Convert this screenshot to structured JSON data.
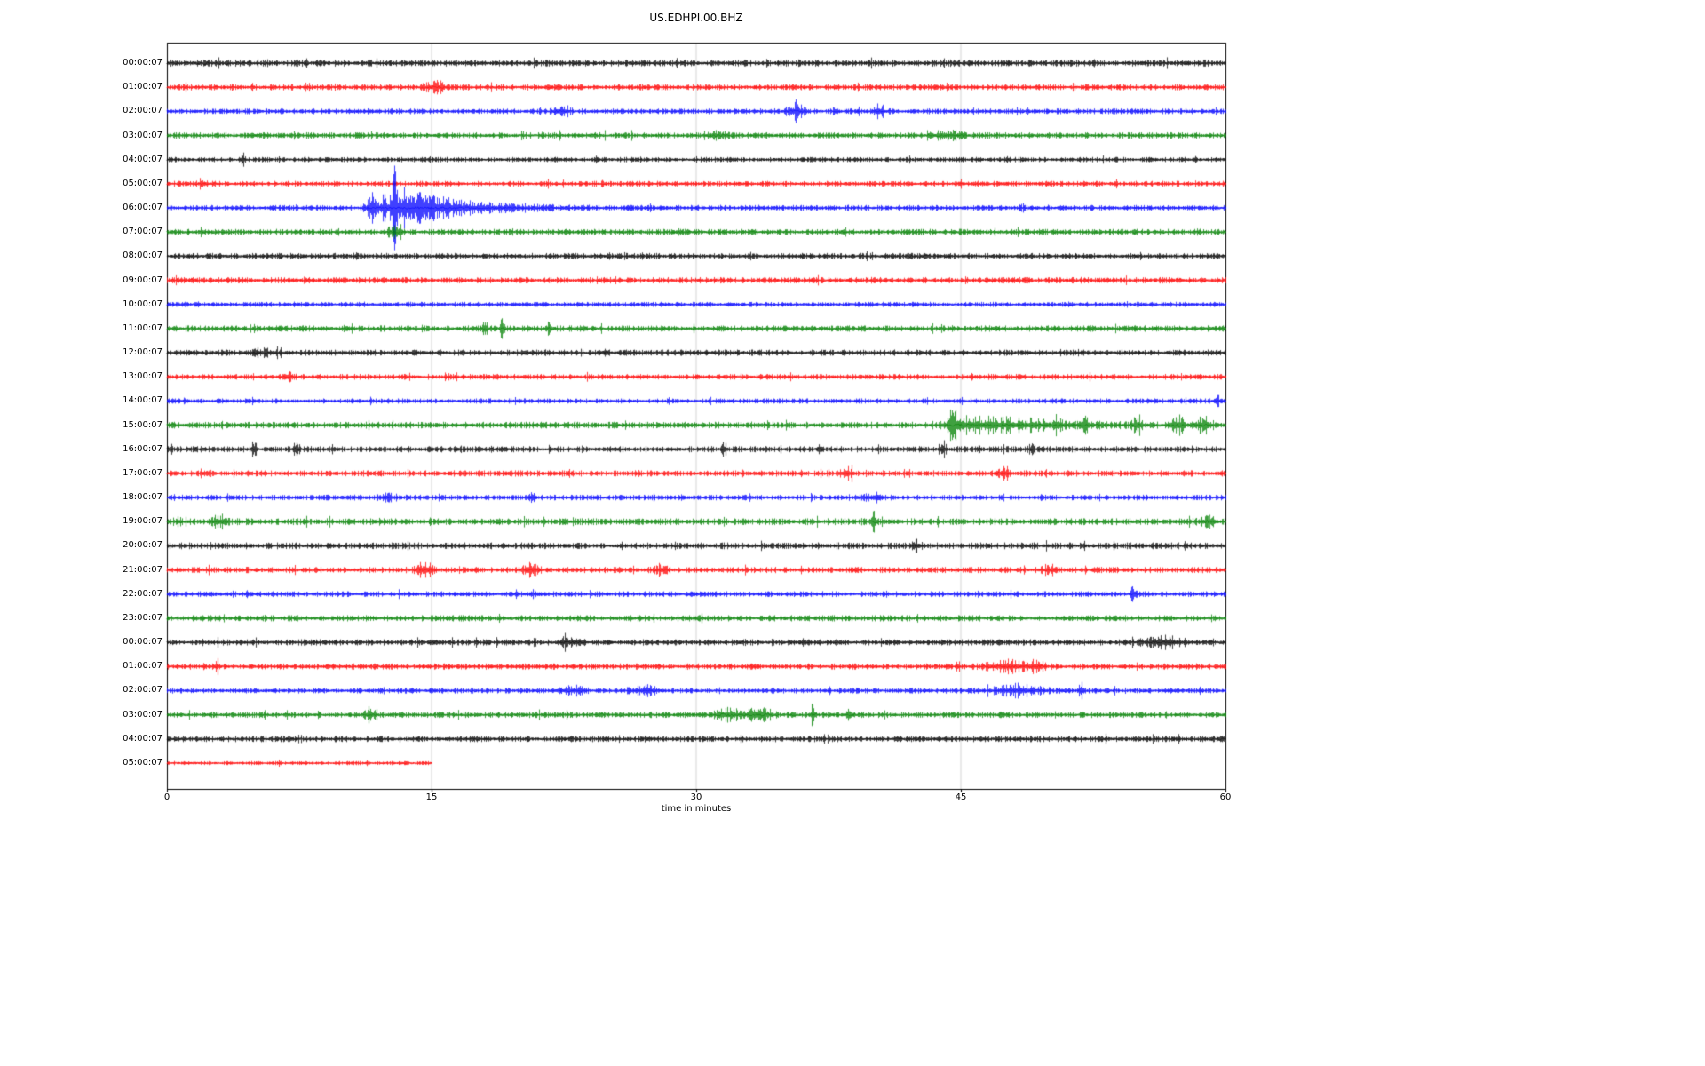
{
  "chart_data": {
    "type": "line",
    "subtype": "helicorder-dayplot",
    "title": "US.EDHPI.00.BHZ",
    "xlabel": "time in minutes",
    "x_range": [
      0,
      60
    ],
    "x_ticks": [
      0,
      15,
      30,
      45,
      60
    ],
    "grid_minutes": [
      15,
      30,
      45
    ],
    "colors": {
      "black": "#000000",
      "red": "#ff0000",
      "blue": "#0000ff",
      "green": "#008000"
    },
    "rows": [
      {
        "label": "00:00:07",
        "color": "black",
        "amp": 2.6,
        "end": 60,
        "events": []
      },
      {
        "label": "01:00:07",
        "color": "red",
        "amp": 2.4,
        "end": 60,
        "events": [
          {
            "t": 15.2,
            "a": 4,
            "w": 0.4
          }
        ]
      },
      {
        "label": "02:00:07",
        "color": "blue",
        "amp": 2.2,
        "end": 60,
        "events": [
          {
            "t": 22.4,
            "a": 4,
            "w": 0.3
          },
          {
            "t": 35.6,
            "a": 5,
            "w": 0.35
          },
          {
            "t": 40.3,
            "a": 4,
            "w": 0.25
          }
        ]
      },
      {
        "label": "03:00:07",
        "color": "green",
        "amp": 2.4,
        "end": 60,
        "events": [
          {
            "t": 31.0,
            "a": 3,
            "w": 0.4
          },
          {
            "t": 44.2,
            "a": 3,
            "w": 0.5
          }
        ]
      },
      {
        "label": "04:00:07",
        "color": "black",
        "amp": 2.0,
        "end": 60,
        "events": [
          {
            "t": 4.3,
            "a": 6,
            "w": 0.07
          }
        ]
      },
      {
        "label": "05:00:07",
        "color": "red",
        "amp": 2.2,
        "end": 60,
        "events": [
          {
            "t": 2.0,
            "a": 3,
            "w": 0.2
          }
        ]
      },
      {
        "label": "06:00:07",
        "color": "blue",
        "amp": 2.2,
        "end": 60,
        "events": [
          {
            "t": 11.6,
            "a": 7,
            "w": 0.25
          },
          {
            "t": 12.3,
            "a": 9,
            "w": 0.18
          },
          {
            "t": 12.85,
            "a": 25,
            "w": 0.12
          },
          {
            "t": 13.3,
            "a": 10,
            "w": 0.3,
            "decay": true
          },
          {
            "t": 14.0,
            "a": 5,
            "w": 0.8,
            "decay": true
          }
        ]
      },
      {
        "label": "07:00:07",
        "color": "green",
        "amp": 2.4,
        "end": 60,
        "events": [
          {
            "t": 12.9,
            "a": 5,
            "w": 0.25
          }
        ]
      },
      {
        "label": "08:00:07",
        "color": "black",
        "amp": 2.4,
        "end": 60,
        "events": []
      },
      {
        "label": "09:00:07",
        "color": "red",
        "amp": 2.4,
        "end": 60,
        "events": []
      },
      {
        "label": "10:00:07",
        "color": "blue",
        "amp": 2.0,
        "end": 60,
        "events": []
      },
      {
        "label": "11:00:07",
        "color": "green",
        "amp": 2.4,
        "end": 60,
        "events": [
          {
            "t": 18.0,
            "a": 7,
            "w": 0.07
          },
          {
            "t": 19.0,
            "a": 8,
            "w": 0.07
          },
          {
            "t": 21.6,
            "a": 4,
            "w": 0.1
          }
        ]
      },
      {
        "label": "12:00:07",
        "color": "black",
        "amp": 2.4,
        "end": 60,
        "events": [
          {
            "t": 5.5,
            "a": 2.5,
            "w": 0.4
          }
        ]
      },
      {
        "label": "13:00:07",
        "color": "red",
        "amp": 2.2,
        "end": 60,
        "events": [
          {
            "t": 7.0,
            "a": 4,
            "w": 0.12
          }
        ]
      },
      {
        "label": "14:00:07",
        "color": "blue",
        "amp": 2.0,
        "end": 60,
        "events": [
          {
            "t": 59.5,
            "a": 4,
            "w": 0.15
          }
        ]
      },
      {
        "label": "15:00:07",
        "color": "green",
        "amp": 2.6,
        "end": 60,
        "events": [
          {
            "t": 44.5,
            "a": 20,
            "w": 0.15
          },
          {
            "t": 45.3,
            "a": 5,
            "w": 0.8,
            "decay": true
          },
          {
            "t": 50.5,
            "a": 5,
            "w": 0.15
          },
          {
            "t": 52.0,
            "a": 4,
            "w": 0.2
          },
          {
            "t": 55.0,
            "a": 5,
            "w": 0.25
          },
          {
            "t": 57.3,
            "a": 6,
            "w": 0.25
          },
          {
            "t": 58.8,
            "a": 6,
            "w": 0.3
          }
        ]
      },
      {
        "label": "16:00:07",
        "color": "black",
        "amp": 2.4,
        "end": 60,
        "events": [
          {
            "t": 4.9,
            "a": 8,
            "w": 0.09
          },
          {
            "t": 7.3,
            "a": 6,
            "w": 0.12
          },
          {
            "t": 31.6,
            "a": 5,
            "w": 0.1
          },
          {
            "t": 44.0,
            "a": 5,
            "w": 0.1
          },
          {
            "t": 46.0,
            "a": 4,
            "w": 0.1
          },
          {
            "t": 49.0,
            "a": 4,
            "w": 0.1
          }
        ]
      },
      {
        "label": "17:00:07",
        "color": "red",
        "amp": 2.4,
        "end": 60,
        "events": [
          {
            "t": 38.5,
            "a": 3.5,
            "w": 0.25
          },
          {
            "t": 47.5,
            "a": 3.5,
            "w": 0.25
          }
        ]
      },
      {
        "label": "18:00:07",
        "color": "blue",
        "amp": 2.2,
        "end": 60,
        "events": [
          {
            "t": 12.5,
            "a": 3,
            "w": 0.3
          },
          {
            "t": 20.7,
            "a": 5,
            "w": 0.12
          },
          {
            "t": 40.0,
            "a": 3,
            "w": 0.3
          }
        ]
      },
      {
        "label": "19:00:07",
        "color": "green",
        "amp": 2.6,
        "end": 60,
        "events": [
          {
            "t": 3.0,
            "a": 4,
            "w": 0.3
          },
          {
            "t": 40.0,
            "a": 8,
            "w": 0.1
          },
          {
            "t": 59.0,
            "a": 3,
            "w": 0.3
          }
        ]
      },
      {
        "label": "20:00:07",
        "color": "black",
        "amp": 2.6,
        "end": 60,
        "events": [
          {
            "t": 42.5,
            "a": 3,
            "w": 0.25
          }
        ]
      },
      {
        "label": "21:00:07",
        "color": "red",
        "amp": 2.4,
        "end": 60,
        "events": [
          {
            "t": 14.6,
            "a": 5,
            "w": 0.35
          },
          {
            "t": 20.6,
            "a": 5,
            "w": 0.3
          },
          {
            "t": 28.0,
            "a": 4,
            "w": 0.2
          },
          {
            "t": 50.0,
            "a": 3,
            "w": 0.3
          }
        ]
      },
      {
        "label": "22:00:07",
        "color": "blue",
        "amp": 2.2,
        "end": 60,
        "events": [
          {
            "t": 54.8,
            "a": 6,
            "w": 0.12
          }
        ]
      },
      {
        "label": "23:00:07",
        "color": "green",
        "amp": 2.4,
        "end": 60,
        "events": []
      },
      {
        "label": "00:00:07",
        "color": "black",
        "amp": 2.4,
        "end": 60,
        "events": [
          {
            "t": 23.0,
            "a": 3.5,
            "w": 0.4
          },
          {
            "t": 56.5,
            "a": 3.5,
            "w": 0.8
          }
        ]
      },
      {
        "label": "01:00:07",
        "color": "red",
        "amp": 2.4,
        "end": 60,
        "events": [
          {
            "t": 2.8,
            "a": 6,
            "w": 0.08
          },
          {
            "t": 47.6,
            "a": 4,
            "w": 0.7
          },
          {
            "t": 49.2,
            "a": 3.5,
            "w": 0.4
          }
        ]
      },
      {
        "label": "02:00:07",
        "color": "blue",
        "amp": 2.2,
        "end": 60,
        "events": [
          {
            "t": 23.0,
            "a": 3,
            "w": 0.4
          },
          {
            "t": 27.0,
            "a": 3,
            "w": 0.5
          },
          {
            "t": 48.2,
            "a": 4,
            "w": 0.9
          },
          {
            "t": 51.8,
            "a": 7,
            "w": 0.12
          }
        ]
      },
      {
        "label": "03:00:07",
        "color": "green",
        "amp": 2.4,
        "end": 60,
        "events": [
          {
            "t": 11.5,
            "a": 5,
            "w": 0.2
          },
          {
            "t": 31.8,
            "a": 4,
            "w": 0.5
          },
          {
            "t": 33.6,
            "a": 6,
            "w": 0.4
          },
          {
            "t": 36.6,
            "a": 9,
            "w": 0.1
          },
          {
            "t": 38.6,
            "a": 5,
            "w": 0.09
          }
        ]
      },
      {
        "label": "04:00:07",
        "color": "black",
        "amp": 2.4,
        "end": 60,
        "events": []
      },
      {
        "label": "05:00:07",
        "color": "red",
        "amp": 1.6,
        "end": 15,
        "events": []
      }
    ]
  }
}
